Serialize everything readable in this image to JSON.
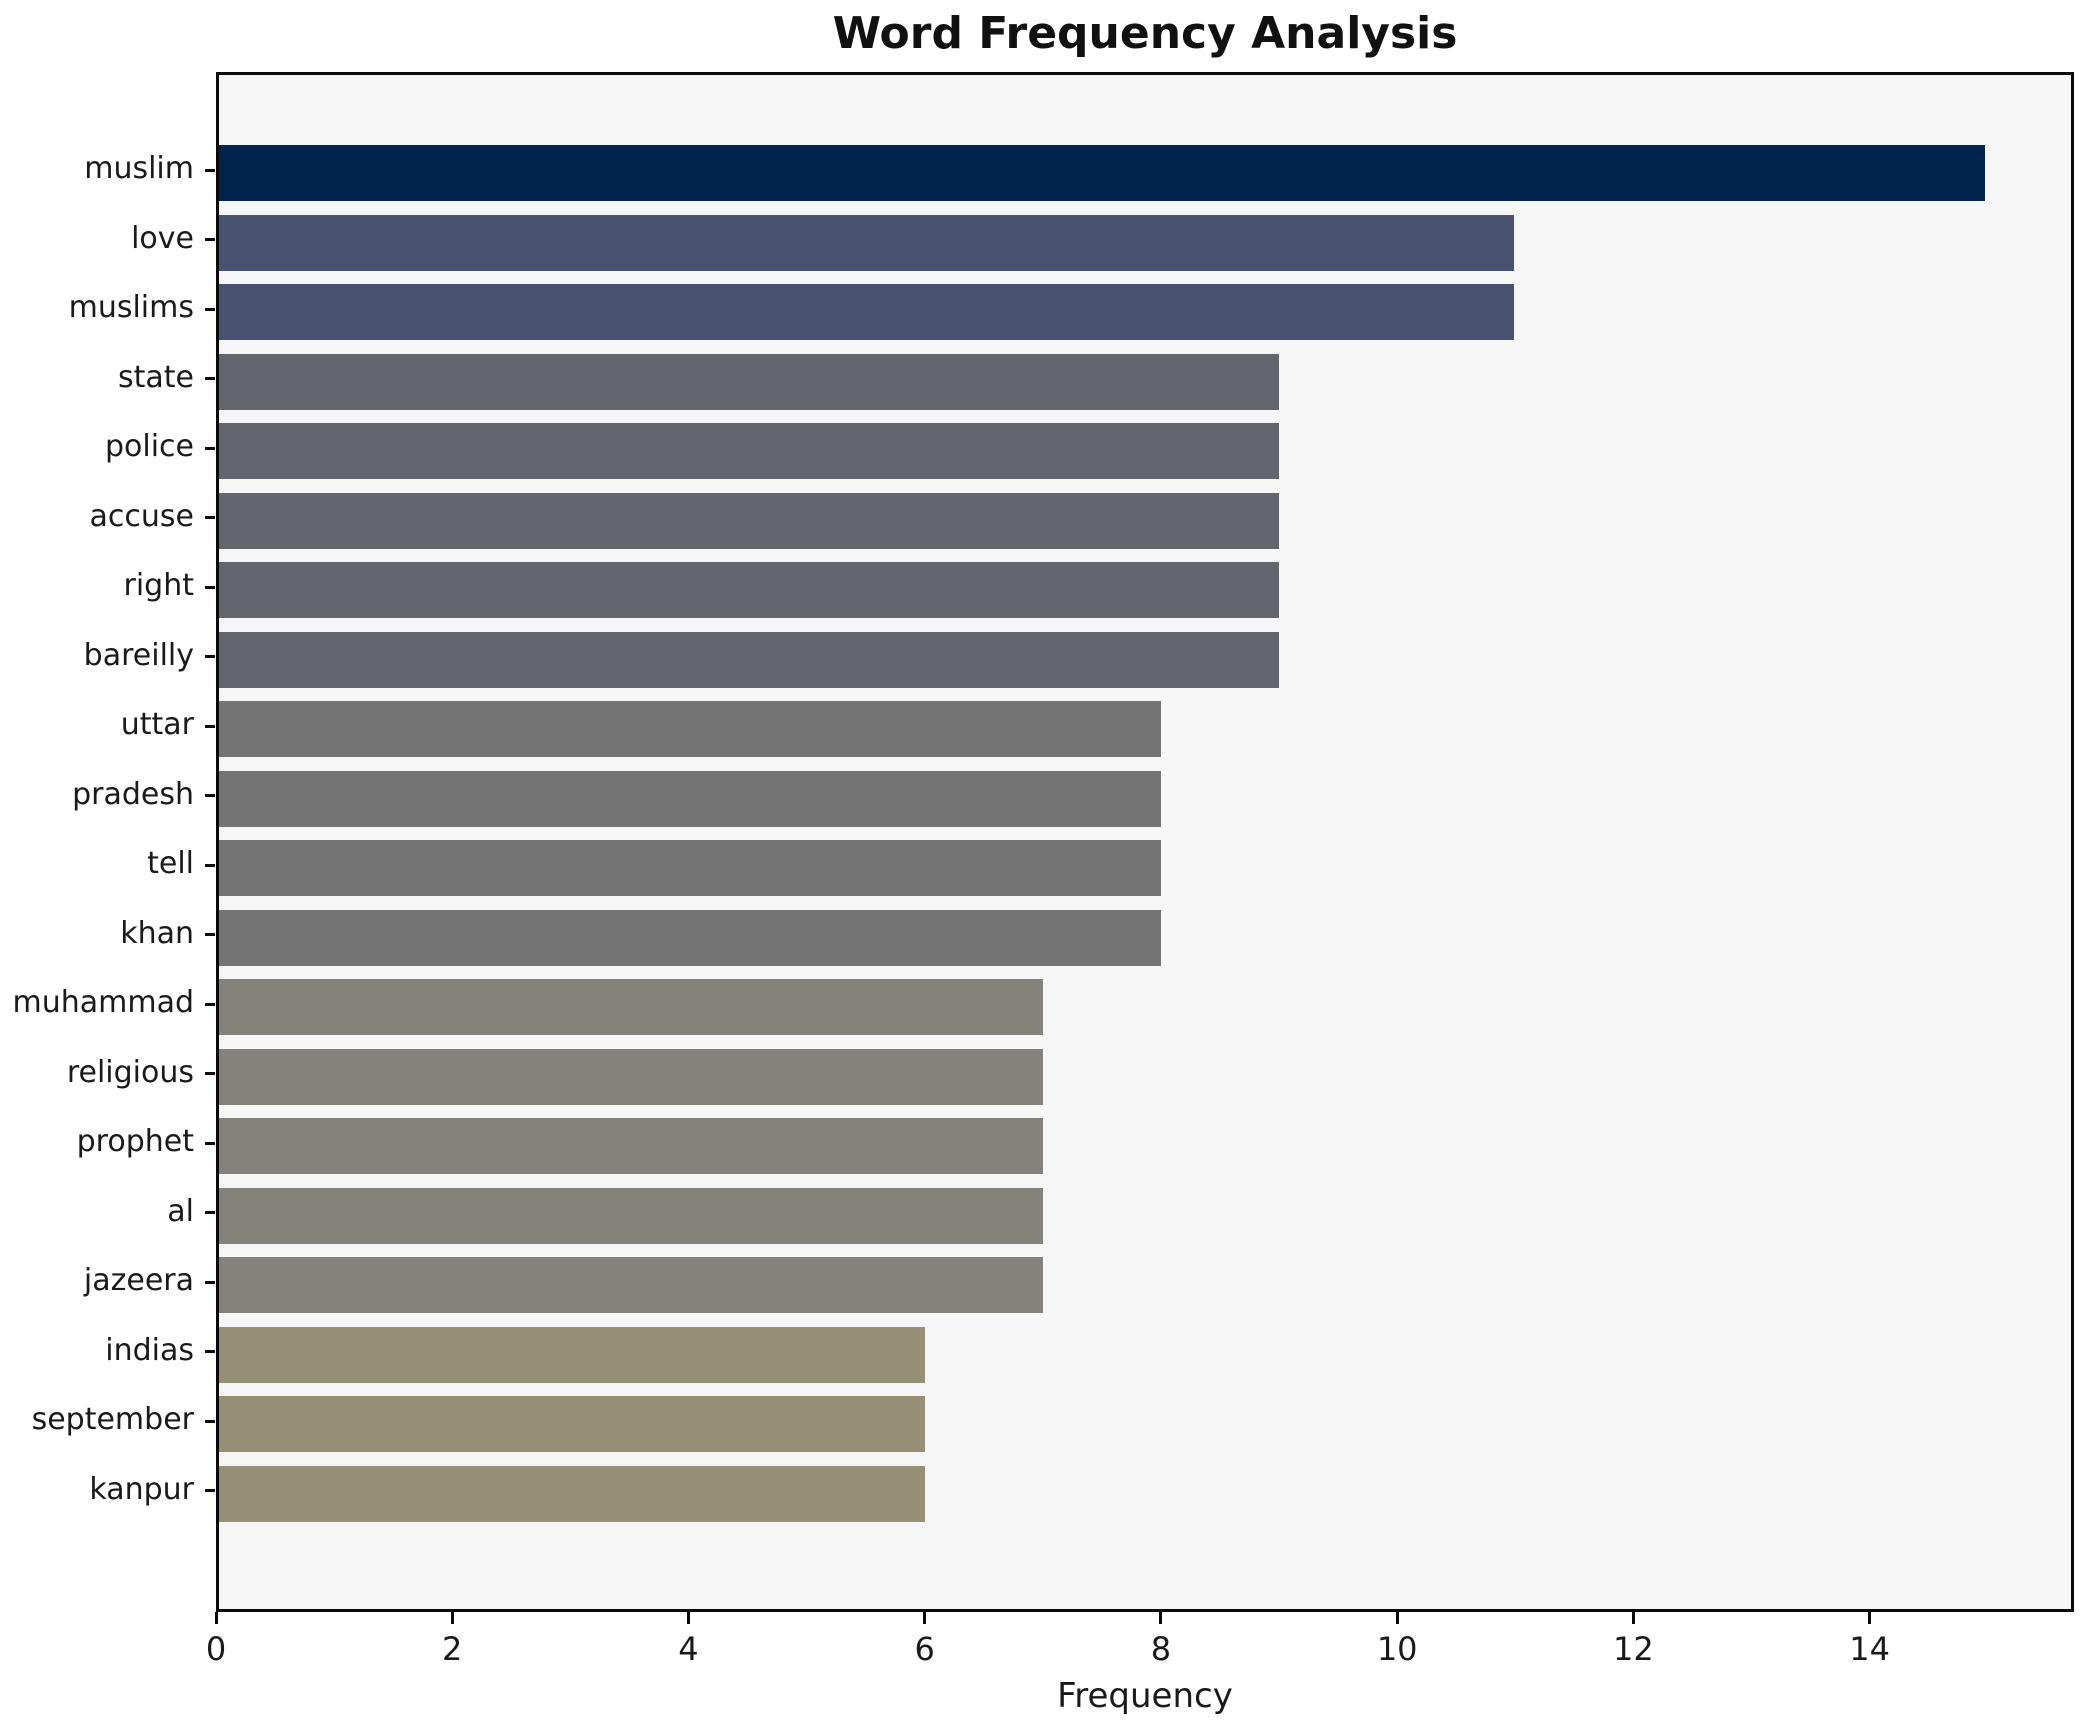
{
  "figure": {
    "title": "Word Frequency Analysis",
    "xlabel": "Frequency"
  },
  "chart_data": {
    "type": "bar",
    "orientation": "horizontal",
    "title": "Word Frequency Analysis",
    "xlabel": "Frequency",
    "ylabel": "",
    "grid": false,
    "legend": false,
    "plot_background": "#f6f6f7",
    "outer_background": "#ffffff",
    "xlim": [
      0,
      15.73
    ],
    "xticks": [
      0,
      2,
      4,
      6,
      8,
      10,
      12,
      14
    ],
    "categories": [
      "muslim",
      "love",
      "muslims",
      "state",
      "police",
      "accuse",
      "right",
      "bareilly",
      "uttar",
      "pradesh",
      "tell",
      "khan",
      "muhammad",
      "religious",
      "prophet",
      "al",
      "jazeera",
      "indias",
      "september",
      "kanpur"
    ],
    "values": [
      15,
      11,
      11,
      9,
      9,
      9,
      9,
      9,
      8,
      8,
      8,
      8,
      7,
      7,
      7,
      7,
      7,
      6,
      6,
      6
    ],
    "bar_colors": [
      "#02234e",
      "#485370",
      "#485370",
      "#64666e",
      "#64666e",
      "#64666e",
      "#64666e",
      "#64666e",
      "#747474",
      "#747474",
      "#747474",
      "#747474",
      "#85827b",
      "#85827b",
      "#85827b",
      "#85827b",
      "#85827b",
      "#948f75",
      "#948f75",
      "#948f75"
    ]
  }
}
